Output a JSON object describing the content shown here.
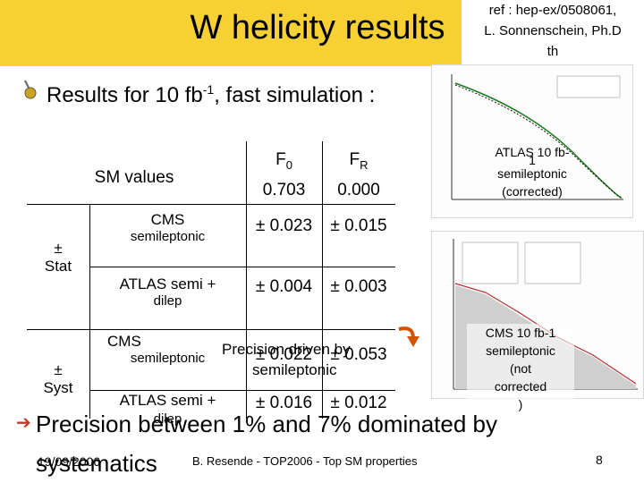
{
  "header": {
    "title": "W helicity results",
    "ref": [
      "ref : hep-ex/0508061,",
      "L. Sonnenschein, Ph.D",
      "th"
    ]
  },
  "section": {
    "heading_prefix": "Results for 10 fb",
    "heading_sup": "-1",
    "heading_suffix": ", fast simulation :"
  },
  "table": {
    "sm_label": "SM values",
    "col_f0": "F",
    "col_f0_sub": "0",
    "col_fr": "F",
    "col_fr_sub": "R",
    "sm_f0": "0.703",
    "sm_fr": "0.000",
    "stat_label_pm": "±",
    "stat_label": "Stat",
    "syst_label_pm": "±",
    "syst_label": "Syst",
    "rows": {
      "cms_stat_name": "CMS",
      "cms_stat_sub": "semileptonic",
      "cms_stat_f0": "± 0.023",
      "cms_stat_fr": "± 0.015",
      "atlas_stat_name": "ATLAS semi +",
      "atlas_stat_sub": "dilep",
      "atlas_stat_f0": "± 0.004",
      "atlas_stat_fr": "± 0.003",
      "cms_syst_name": "CMS",
      "cms_syst_sub": "semileptonic",
      "cms_syst_f0": "± 0.022",
      "cms_syst_fr": "± 0.053",
      "atlas_syst_name": "ATLAS semi +",
      "atlas_syst_sub": "dilep",
      "atlas_syst_f0": "± 0.016",
      "atlas_syst_fr": "± 0.012"
    },
    "precision_note": "Precision driven by",
    "precision_note2": "semileptonic"
  },
  "plots": {
    "atlas_caption": [
      "ATLAS 10 fb-",
      "1",
      "semileptonic",
      "(corrected)"
    ],
    "cms_caption": [
      "CMS 10 fb-1",
      "semileptonic",
      "(not",
      "corrected",
      ")"
    ]
  },
  "conclusion": {
    "text": "Precision between 1% and 7% dominated by systematics"
  },
  "footer": {
    "date": "19/09/2006",
    "center": "B. Resende - TOP2006 - Top SM properties",
    "page": "8"
  },
  "colors": {
    "header_band": "#f7d033",
    "arrow": "#c0392b"
  }
}
